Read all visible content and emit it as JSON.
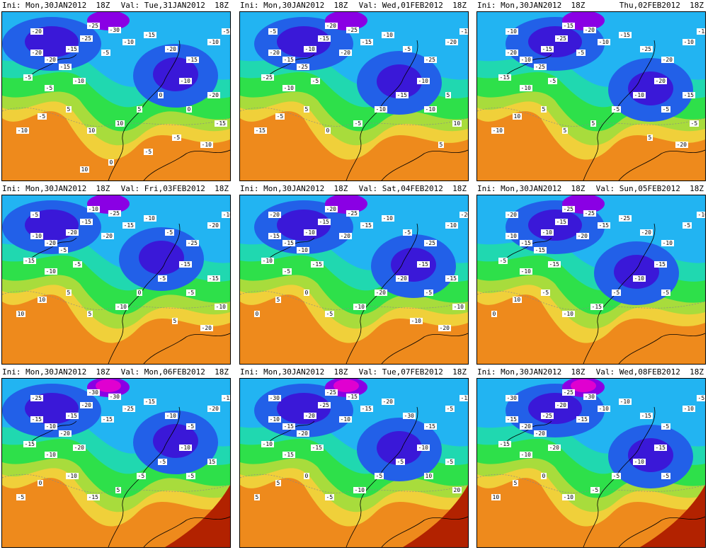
{
  "panels": [
    {
      "ini": "Ini: Mon,30JAN2012  18Z",
      "val": "Val: Tue,31JAN2012  18Z",
      "labels": [
        "-20",
        "-25",
        "-30",
        "-25",
        "-15",
        "-20",
        "-20",
        "-15",
        "-5",
        "-5",
        "-10",
        "-5",
        "-10",
        "-15",
        "-20",
        "-15",
        "-10",
        "-5",
        "-10",
        "0",
        "5",
        "10",
        "10",
        "5",
        "-5",
        "-10",
        "0",
        "-20",
        "-15",
        "-10",
        "-5",
        "-5",
        "0",
        "10"
      ]
    },
    {
      "ini": "Ini: Mon,30JAN2012  18Z",
      "val": "Val: Wed,01FEB2012  18Z",
      "labels": [
        "-5",
        "-20",
        "-25",
        "-15",
        "-10",
        "-15",
        "-20",
        "-25",
        "-25",
        "-10",
        "-5",
        "-20",
        "-15",
        "-10",
        "-5",
        "-25",
        "-20",
        "-15",
        "-10",
        "-15",
        "-10",
        "-5",
        "0",
        "5",
        "-5",
        "-15",
        "-10",
        "5",
        "10",
        "5"
      ]
    },
    {
      "ini": "Ini: Mon,30JAN2012  18Z",
      "val": "Thu,02FEB2012  18Z",
      "labels": [
        "-10",
        "-15",
        "-20",
        "-25",
        "-15",
        "-10",
        "-20",
        "-25",
        "-15",
        "-10",
        "-5",
        "-5",
        "-10",
        "-15",
        "-25",
        "-20",
        "-10",
        "-15",
        "-20",
        "-10",
        "-5",
        "5",
        "5",
        "5",
        "10",
        "-10",
        "-5",
        "-15",
        "-5",
        "-20",
        "5"
      ]
    },
    {
      "ini": "Ini: Mon,30JAN2012  18Z",
      "val": "Val: Fri,03FEB2012  18Z",
      "labels": [
        "-5",
        "-10",
        "-25",
        "-15",
        "-20",
        "-20",
        "-10",
        "-5",
        "-15",
        "-10",
        "-5",
        "-20",
        "-15",
        "-10",
        "-5",
        "-25",
        "-20",
        "-10",
        "-15",
        "-5",
        "0",
        "-10",
        "5",
        "5",
        "10",
        "10",
        "-5",
        "-15",
        "-10",
        "-20",
        "5"
      ]
    },
    {
      "ini": "Ini: Mon,30JAN2012  18Z",
      "val": "Val: Sat,04FEB2012  18Z",
      "labels": [
        "-20",
        "-20",
        "-25",
        "-15",
        "-10",
        "-15",
        "-15",
        "-10",
        "-10",
        "-5",
        "-15",
        "-20",
        "-15",
        "-10",
        "-5",
        "-25",
        "-10",
        "-20",
        "-15",
        "-20",
        "-20",
        "-10",
        "-5",
        "0",
        "5",
        "0",
        "-5",
        "-15",
        "-10",
        "-20",
        "-10"
      ]
    },
    {
      "ini": "Ini: Mon,30JAN2012  18Z",
      "val": "Val: Sun,05FEB2012  18Z",
      "labels": [
        "-20",
        "-25",
        "-25",
        "-15",
        "-10",
        "-15",
        "-10",
        "-15",
        "-5",
        "-10",
        "-15",
        "-20",
        "-15",
        "-25",
        "-20",
        "-10",
        "-5",
        "-10",
        "-15",
        "-10",
        "-5",
        "-15",
        "-10",
        "-5",
        "10",
        "0",
        "-5"
      ]
    },
    {
      "ini": "Ini: Mon,30JAN2012  18Z",
      "val": "Val: Mon,06FEB2012  18Z",
      "labels": [
        "-25",
        "-30",
        "-30",
        "-20",
        "-15",
        "-10",
        "-15",
        "-20",
        "-15",
        "-10",
        "-20",
        "-15",
        "-25",
        "-15",
        "-10",
        "-5",
        "-20",
        "-15",
        "-10",
        "-5",
        "-5",
        "5",
        "-15",
        "-10",
        "0",
        "-5",
        "-5",
        "15"
      ]
    },
    {
      "ini": "Ini: Mon,30JAN2012  18Z",
      "val": "Val: Tue,07FEB2012  18Z",
      "labels": [
        "-30",
        "-25",
        "-15",
        "-25",
        "-20",
        "-15",
        "-10",
        "-20",
        "-10",
        "-15",
        "-15",
        "-10",
        "-15",
        "-20",
        "-30",
        "-15",
        "-5",
        "-15",
        "-10",
        "-5",
        "-5",
        "-10",
        "-5",
        "0",
        "5",
        "5",
        "10",
        "-5",
        "20"
      ]
    },
    {
      "ini": "Ini: Mon,30JAN2012  18Z",
      "val": "Val: Wed,08FEB2012  18Z",
      "labels": [
        "-30",
        "-25",
        "-30",
        "-20",
        "-25",
        "-20",
        "-15",
        "-20",
        "-15",
        "-10",
        "-20",
        "-15",
        "-10",
        "-10",
        "-15",
        "-5",
        "-10",
        "-5",
        "-15",
        "-10",
        "-5",
        "-5",
        "-10",
        "0",
        "5",
        "10",
        "-5"
      ]
    }
  ],
  "colors": {
    "hot": "#b22200",
    "orange": "#ee8a1c",
    "amber": "#f2a838",
    "yellow": "#f0d03a",
    "lime": "#a8dc3c",
    "green": "#2ee04a",
    "teal": "#20d8b0",
    "cyan": "#22b4f2",
    "blue": "#2260e8",
    "indigo": "#3a18d8",
    "violet": "#8a00e4",
    "magenta": "#e000d0"
  }
}
